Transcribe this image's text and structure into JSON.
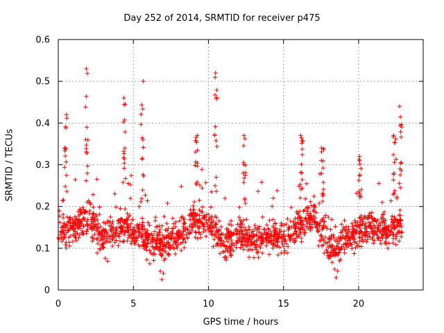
{
  "chart_data": {
    "type": "scatter",
    "title": "Day 252 of 2014, SRMTID for receiver p475",
    "xlabel": "GPS time / hours",
    "ylabel": "SRMTID / TECUs",
    "xlim": [
      0,
      24.3
    ],
    "ylim": [
      0,
      0.6
    ],
    "xticks": [
      0,
      5,
      10,
      15,
      20
    ],
    "yticks": [
      0,
      0.1,
      0.2,
      0.3,
      0.4,
      0.5,
      0.6
    ],
    "ytick_labels": [
      "0",
      "0.1",
      "0.2",
      "0.3",
      "0.4",
      "0.5",
      "0.6"
    ],
    "grid": true,
    "marker": "+",
    "color": "#ff0000",
    "time_range_hours": [
      0,
      22.9
    ],
    "median_profile": [
      {
        "x": 0.0,
        "y": 0.14
      },
      {
        "x": 1.0,
        "y": 0.15
      },
      {
        "x": 2.0,
        "y": 0.17
      },
      {
        "x": 3.0,
        "y": 0.12
      },
      {
        "x": 4.0,
        "y": 0.15
      },
      {
        "x": 5.0,
        "y": 0.14
      },
      {
        "x": 6.0,
        "y": 0.12
      },
      {
        "x": 7.0,
        "y": 0.11
      },
      {
        "x": 8.0,
        "y": 0.13
      },
      {
        "x": 9.0,
        "y": 0.17
      },
      {
        "x": 10.0,
        "y": 0.16
      },
      {
        "x": 11.0,
        "y": 0.11
      },
      {
        "x": 12.0,
        "y": 0.13
      },
      {
        "x": 13.0,
        "y": 0.12
      },
      {
        "x": 14.0,
        "y": 0.13
      },
      {
        "x": 15.0,
        "y": 0.12
      },
      {
        "x": 16.0,
        "y": 0.15
      },
      {
        "x": 17.0,
        "y": 0.18
      },
      {
        "x": 18.0,
        "y": 0.1
      },
      {
        "x": 19.0,
        "y": 0.12
      },
      {
        "x": 20.0,
        "y": 0.14
      },
      {
        "x": 21.0,
        "y": 0.15
      },
      {
        "x": 22.0,
        "y": 0.14
      },
      {
        "x": 22.9,
        "y": 0.16
      }
    ],
    "peaks": [
      {
        "x": 0.5,
        "y": 0.42
      },
      {
        "x": 1.9,
        "y": 0.53
      },
      {
        "x": 4.4,
        "y": 0.46
      },
      {
        "x": 5.6,
        "y": 0.5
      },
      {
        "x": 9.2,
        "y": 0.37
      },
      {
        "x": 10.5,
        "y": 0.52
      },
      {
        "x": 12.4,
        "y": 0.37
      },
      {
        "x": 16.2,
        "y": 0.37
      },
      {
        "x": 17.6,
        "y": 0.34
      },
      {
        "x": 20.1,
        "y": 0.32
      },
      {
        "x": 22.4,
        "y": 0.37
      },
      {
        "x": 22.8,
        "y": 0.44
      }
    ],
    "min_values": [
      {
        "x": 6.9,
        "y": 0.025
      },
      {
        "x": 18.5,
        "y": 0.03
      }
    ],
    "point_count": 1650
  }
}
